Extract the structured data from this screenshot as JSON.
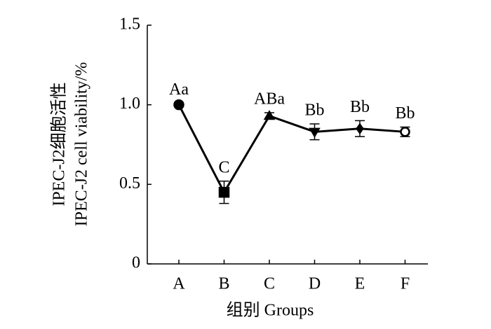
{
  "chart_data": {
    "type": "line",
    "ylabel": [
      "IPEC-J2细胞活性",
      "IPEC-J2 cell viability/%"
    ],
    "xlabel": "组别 Groups",
    "categories": [
      "A",
      "B",
      "C",
      "D",
      "E",
      "F"
    ],
    "values": [
      1.0,
      0.45,
      0.93,
      0.83,
      0.85,
      0.83
    ],
    "errors": [
      0.01,
      0.07,
      0.02,
      0.05,
      0.05,
      0.03
    ],
    "annotations": [
      "Aa",
      "C",
      "ABa",
      "Bb",
      "Bb",
      "Bb"
    ],
    "markers": [
      "circle",
      "square",
      "triangle-up",
      "triangle-down",
      "diamond",
      "circle-open"
    ],
    "color": "#000000",
    "ylim": [
      0,
      1.5
    ],
    "yticks": [
      0,
      0.5,
      {
        "value": 1,
        "label": "1.0"
      },
      1.5
    ]
  }
}
